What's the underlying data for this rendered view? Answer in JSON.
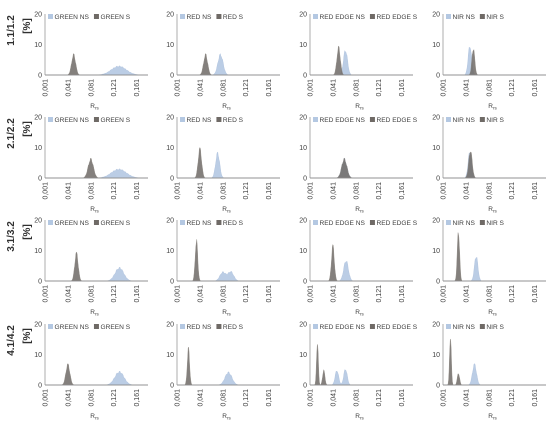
{
  "colors": {
    "NS": "#b4c8e2",
    "S": "#6f6a66",
    "axis": "#8c8c8c",
    "text": "#404040"
  },
  "x_ticks": [
    "0,001",
    "0,041",
    "0,081",
    "0,121",
    "0,161"
  ],
  "y_ticks": [
    "0",
    "10",
    "20"
  ],
  "xlabel_main": "R",
  "xlabel_sub": "rs",
  "ylabel_unit": "[%]",
  "chart_data": {
    "type": "area",
    "description_units": "x = reflectance R_rs, y = frequency [%]",
    "xlim": [
      0.001,
      0.181
    ],
    "ylim": [
      0,
      20
    ],
    "rows": [
      {
        "label": "1.1/1.2",
        "panels": [
          {
            "legend": [
              "GREEN NS",
              "GREEN S"
            ],
            "series": [
              {
                "name": "GREEN NS",
                "peaks": [
                  {
                    "x": 0.13,
                    "y": 3.0,
                    "w": 0.013
                  }
                ]
              },
              {
                "name": "GREEN S",
                "peaks": [
                  {
                    "x": 0.051,
                    "y": 7.0,
                    "w": 0.0035
                  }
                ]
              }
            ]
          },
          {
            "legend": [
              "RED NS",
              "RED S"
            ],
            "series": [
              {
                "name": "RED NS",
                "peaks": [
                  {
                    "x": 0.077,
                    "y": 7.0,
                    "w": 0.0045
                  }
                ]
              },
              {
                "name": "RED S",
                "peaks": [
                  {
                    "x": 0.051,
                    "y": 7.0,
                    "w": 0.0035
                  }
                ]
              }
            ]
          },
          {
            "legend": [
              "RED EDGE NS",
              "RED EDGE S"
            ],
            "series": [
              {
                "name": "RED EDGE NS",
                "peaks": [
                  {
                    "x": 0.063,
                    "y": 8.5,
                    "w": 0.0035
                  }
                ]
              },
              {
                "name": "RED EDGE S",
                "peaks": [
                  {
                    "x": 0.051,
                    "y": 9.5,
                    "w": 0.003
                  }
                ]
              }
            ]
          },
          {
            "legend": [
              "NIR NS",
              "NIR S"
            ],
            "series": [
              {
                "name": "NIR NS",
                "peaks": [
                  {
                    "x": 0.048,
                    "y": 10.0,
                    "w": 0.003
                  }
                ]
              },
              {
                "name": "NIR S",
                "peaks": [
                  {
                    "x": 0.054,
                    "y": 9.0,
                    "w": 0.0025
                  }
                ]
              }
            ]
          }
        ]
      },
      {
        "label": "2.1/2.2",
        "panels": [
          {
            "legend": [
              "GREEN NS",
              "GREEN S"
            ],
            "series": [
              {
                "name": "GREEN NS",
                "peaks": [
                  {
                    "x": 0.13,
                    "y": 3.0,
                    "w": 0.013
                  }
                ]
              },
              {
                "name": "GREEN S",
                "peaks": [
                  {
                    "x": 0.081,
                    "y": 6.5,
                    "w": 0.0045
                  }
                ]
              }
            ]
          },
          {
            "legend": [
              "RED NS",
              "RED S"
            ],
            "series": [
              {
                "name": "RED NS",
                "peaks": [
                  {
                    "x": 0.072,
                    "y": 8.5,
                    "w": 0.0035
                  }
                ]
              },
              {
                "name": "RED S",
                "peaks": [
                  {
                    "x": 0.041,
                    "y": 10.0,
                    "w": 0.003
                  }
                ]
              }
            ]
          },
          {
            "legend": [
              "RED EDGE NS",
              "RED EDGE S"
            ],
            "series": [
              {
                "name": "RED EDGE NS",
                "peaks": [
                  {
                    "x": 0.061,
                    "y": 6.5,
                    "w": 0.0045
                  }
                ]
              },
              {
                "name": "RED EDGE S",
                "peaks": [
                  {
                    "x": 0.061,
                    "y": 6.5,
                    "w": 0.0045
                  }
                ]
              }
            ]
          },
          {
            "legend": [
              "NIR NS",
              "NIR S"
            ],
            "series": [
              {
                "name": "NIR NS",
                "peaks": [
                  {
                    "x": 0.048,
                    "y": 9.0,
                    "w": 0.003
                  }
                ]
              },
              {
                "name": "NIR S",
                "peaks": [
                  {
                    "x": 0.049,
                    "y": 9.5,
                    "w": 0.003
                  }
                ]
              }
            ]
          }
        ]
      },
      {
        "label": "3.1/3.2",
        "panels": [
          {
            "legend": [
              "GREEN NS",
              "GREEN S"
            ],
            "series": [
              {
                "name": "GREEN NS",
                "peaks": [
                  {
                    "x": 0.131,
                    "y": 4.5,
                    "w": 0.0075
                  }
                ]
              },
              {
                "name": "GREEN S",
                "peaks": [
                  {
                    "x": 0.056,
                    "y": 9.5,
                    "w": 0.003
                  }
                ]
              }
            ]
          },
          {
            "legend": [
              "RED NS",
              "RED S"
            ],
            "series": [
              {
                "name": "RED NS",
                "peaks": [
                  {
                    "x": 0.081,
                    "y": 3.0,
                    "w": 0.005
                  },
                  {
                    "x": 0.095,
                    "y": 3.2,
                    "w": 0.005
                  }
                ]
              },
              {
                "name": "RED S",
                "peaks": [
                  {
                    "x": 0.035,
                    "y": 14.0,
                    "w": 0.0022
                  }
                ]
              }
            ]
          },
          {
            "legend": [
              "RED EDGE NS",
              "RED EDGE S"
            ],
            "series": [
              {
                "name": "RED EDGE NS",
                "peaks": [
                  {
                    "x": 0.064,
                    "y": 7.0,
                    "w": 0.004
                  }
                ]
              },
              {
                "name": "RED EDGE S",
                "peaks": [
                  {
                    "x": 0.041,
                    "y": 12.0,
                    "w": 0.0025
                  }
                ]
              }
            ]
          },
          {
            "legend": [
              "NIR NS",
              "NIR S"
            ],
            "series": [
              {
                "name": "NIR NS",
                "peaks": [
                  {
                    "x": 0.059,
                    "y": 8.5,
                    "w": 0.003
                  }
                ]
              },
              {
                "name": "NIR S",
                "peaks": [
                  {
                    "x": 0.028,
                    "y": 17.0,
                    "w": 0.002
                  }
                ]
              }
            ]
          }
        ]
      },
      {
        "label": "4.1/4.2",
        "panels": [
          {
            "legend": [
              "GREEN NS",
              "GREEN S"
            ],
            "series": [
              {
                "name": "GREEN NS",
                "peaks": [
                  {
                    "x": 0.131,
                    "y": 4.5,
                    "w": 0.008
                  }
                ]
              },
              {
                "name": "GREEN S",
                "peaks": [
                  {
                    "x": 0.041,
                    "y": 7.0,
                    "w": 0.0035
                  }
                ]
              }
            ]
          },
          {
            "legend": [
              "RED NS",
              "RED S"
            ],
            "series": [
              {
                "name": "RED NS",
                "peaks": [
                  {
                    "x": 0.091,
                    "y": 4.3,
                    "w": 0.006
                  }
                ]
              },
              {
                "name": "RED S",
                "peaks": [
                  {
                    "x": 0.021,
                    "y": 12.5,
                    "w": 0.002
                  }
                ]
              }
            ]
          },
          {
            "legend": [
              "RED EDGE NS",
              "RED EDGE S"
            ],
            "series": [
              {
                "name": "RED EDGE NS",
                "peaks": [
                  {
                    "x": 0.048,
                    "y": 5.0,
                    "w": 0.003
                  },
                  {
                    "x": 0.063,
                    "y": 5.5,
                    "w": 0.003
                  }
                ]
              },
              {
                "name": "RED EDGE S",
                "peaks": [
                  {
                    "x": 0.014,
                    "y": 15.0,
                    "w": 0.0015
                  },
                  {
                    "x": 0.025,
                    "y": 5.0,
                    "w": 0.002
                  }
                ]
              }
            ]
          },
          {
            "legend": [
              "NIR NS",
              "NIR S"
            ],
            "series": [
              {
                "name": "NIR NS",
                "peaks": [
                  {
                    "x": 0.056,
                    "y": 7.0,
                    "w": 0.0035
                  }
                ]
              },
              {
                "name": "NIR S",
                "peaks": [
                  {
                    "x": 0.014,
                    "y": 17.0,
                    "w": 0.0015
                  },
                  {
                    "x": 0.028,
                    "y": 4.0,
                    "w": 0.002
                  }
                ]
              }
            ]
          }
        ]
      }
    ]
  }
}
